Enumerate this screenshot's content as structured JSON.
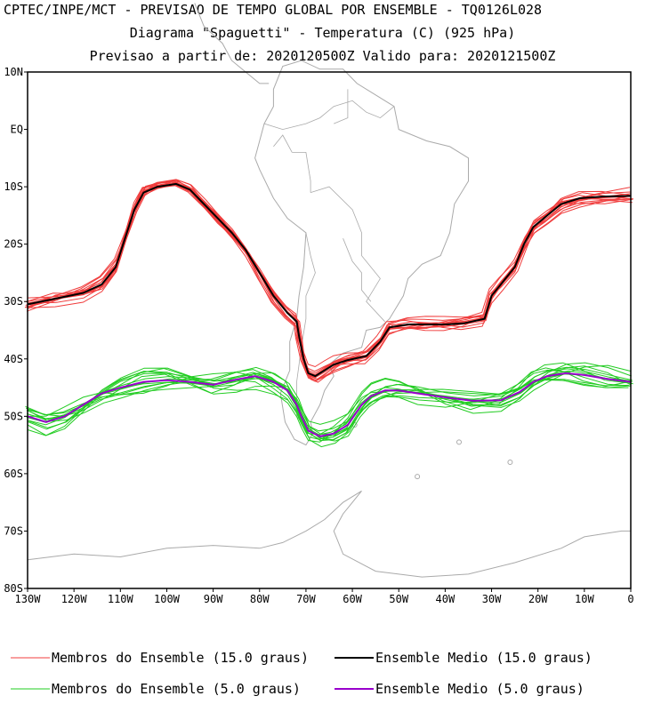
{
  "header": {
    "line1": "CPTEC/INPE/MCT - PREVISAO DE TEMPO GLOBAL POR ENSEMBLE - TQ0126L028",
    "line2": "Diagrama \"Spaguetti\" - Temperatura (C) (925 hPa)",
    "line3": "Previsao a partir de: 2020120500Z  Valido para: 2020121500Z"
  },
  "chart_data": {
    "type": "line",
    "title": "Diagrama \"Spaguetti\" - Temperatura (C) (925 hPa)",
    "x_axis": {
      "ticks": [
        -130,
        -120,
        -110,
        -100,
        -90,
        -80,
        -70,
        -60,
        -50,
        -40,
        -30,
        -20,
        -10,
        0
      ],
      "tick_labels": [
        "130W",
        "120W",
        "110W",
        "100W",
        "90W",
        "80W",
        "70W",
        "60W",
        "50W",
        "40W",
        "30W",
        "20W",
        "10W",
        "0"
      ],
      "range": [
        -130,
        0
      ]
    },
    "y_axis": {
      "ticks": [
        10,
        0,
        -10,
        -20,
        -30,
        -40,
        -50,
        -60,
        -70,
        -80
      ],
      "tick_labels": [
        "10N",
        "EQ",
        "10S",
        "20S",
        "30S",
        "40S",
        "50S",
        "60S",
        "70S",
        "80S"
      ],
      "range": [
        -80,
        10
      ]
    },
    "colors": {
      "member15": "#f03c3c",
      "mean15": "#000000",
      "member5": "#22cc22",
      "mean5": "#9900cc",
      "coast": "#aaaaaa"
    },
    "series": [
      {
        "name": "Ensemble Medio (15.0 graus)",
        "role": "mean15",
        "points": [
          [
            -130,
            -30.5
          ],
          [
            -124,
            -29.5
          ],
          [
            -118,
            -28.5
          ],
          [
            -114,
            -27
          ],
          [
            -111,
            -24
          ],
          [
            -109,
            -19
          ],
          [
            -107,
            -14
          ],
          [
            -105,
            -11
          ],
          [
            -102,
            -10
          ],
          [
            -98,
            -9.5
          ],
          [
            -95,
            -10.5
          ],
          [
            -92,
            -13
          ],
          [
            -89,
            -15.5
          ],
          [
            -86,
            -18
          ],
          [
            -83,
            -21
          ],
          [
            -80,
            -25
          ],
          [
            -77,
            -29
          ],
          [
            -74,
            -32
          ],
          [
            -72,
            -33.5
          ],
          [
            -71.5,
            -36
          ],
          [
            -70.5,
            -40
          ],
          [
            -69.5,
            -42.5
          ],
          [
            -68,
            -43
          ],
          [
            -66,
            -42
          ],
          [
            -64,
            -41
          ],
          [
            -61,
            -40.2
          ],
          [
            -57,
            -39.5
          ],
          [
            -54,
            -37
          ],
          [
            -52,
            -34.5
          ],
          [
            -48,
            -34
          ],
          [
            -44,
            -34
          ],
          [
            -40,
            -34
          ],
          [
            -36,
            -33.8
          ],
          [
            -31.5,
            -33
          ],
          [
            -30,
            -29
          ],
          [
            -28,
            -27
          ],
          [
            -25,
            -24
          ],
          [
            -23,
            -20
          ],
          [
            -21,
            -17
          ],
          [
            -18,
            -15
          ],
          [
            -15,
            -13
          ],
          [
            -11,
            -12
          ],
          [
            -6,
            -11.7
          ],
          [
            0,
            -11.6
          ]
        ]
      },
      {
        "name": "Ensemble Medio (5.0 graus)",
        "role": "mean5",
        "points": [
          [
            -130,
            -50
          ],
          [
            -126,
            -51
          ],
          [
            -122,
            -50
          ],
          [
            -118,
            -48
          ],
          [
            -114,
            -46
          ],
          [
            -110,
            -45
          ],
          [
            -105,
            -44
          ],
          [
            -100,
            -43.7
          ],
          [
            -95,
            -44
          ],
          [
            -90,
            -44.5
          ],
          [
            -85,
            -43.6
          ],
          [
            -81,
            -43
          ],
          [
            -77,
            -44
          ],
          [
            -74,
            -45.5
          ],
          [
            -72,
            -48
          ],
          [
            -71,
            -50
          ],
          [
            -69.5,
            -52.5
          ],
          [
            -67,
            -53.5
          ],
          [
            -64,
            -53
          ],
          [
            -61,
            -51.5
          ],
          [
            -58,
            -48
          ],
          [
            -56,
            -46.5
          ],
          [
            -53,
            -45.5
          ],
          [
            -50,
            -45.5
          ],
          [
            -46,
            -46
          ],
          [
            -40,
            -46.7
          ],
          [
            -34,
            -47.3
          ],
          [
            -28,
            -47.2
          ],
          [
            -24,
            -45.8
          ],
          [
            -21,
            -44
          ],
          [
            -18,
            -43
          ],
          [
            -14,
            -42.5
          ],
          [
            -10,
            -42.8
          ],
          [
            -5,
            -43.5
          ],
          [
            0,
            -44
          ]
        ]
      }
    ],
    "legend": [
      {
        "label": "Membros do Ensemble (15.0 graus)",
        "role": "member15"
      },
      {
        "label": "Ensemble Medio (15.0 graus)",
        "role": "mean15"
      },
      {
        "label": "Membros do Ensemble (5.0 graus)",
        "role": "member5"
      },
      {
        "label": "Ensemble Medio (5.0 graus)",
        "role": "mean5"
      }
    ],
    "member_count_per_contour": 14,
    "grid": false,
    "legend_position": "bottom"
  }
}
